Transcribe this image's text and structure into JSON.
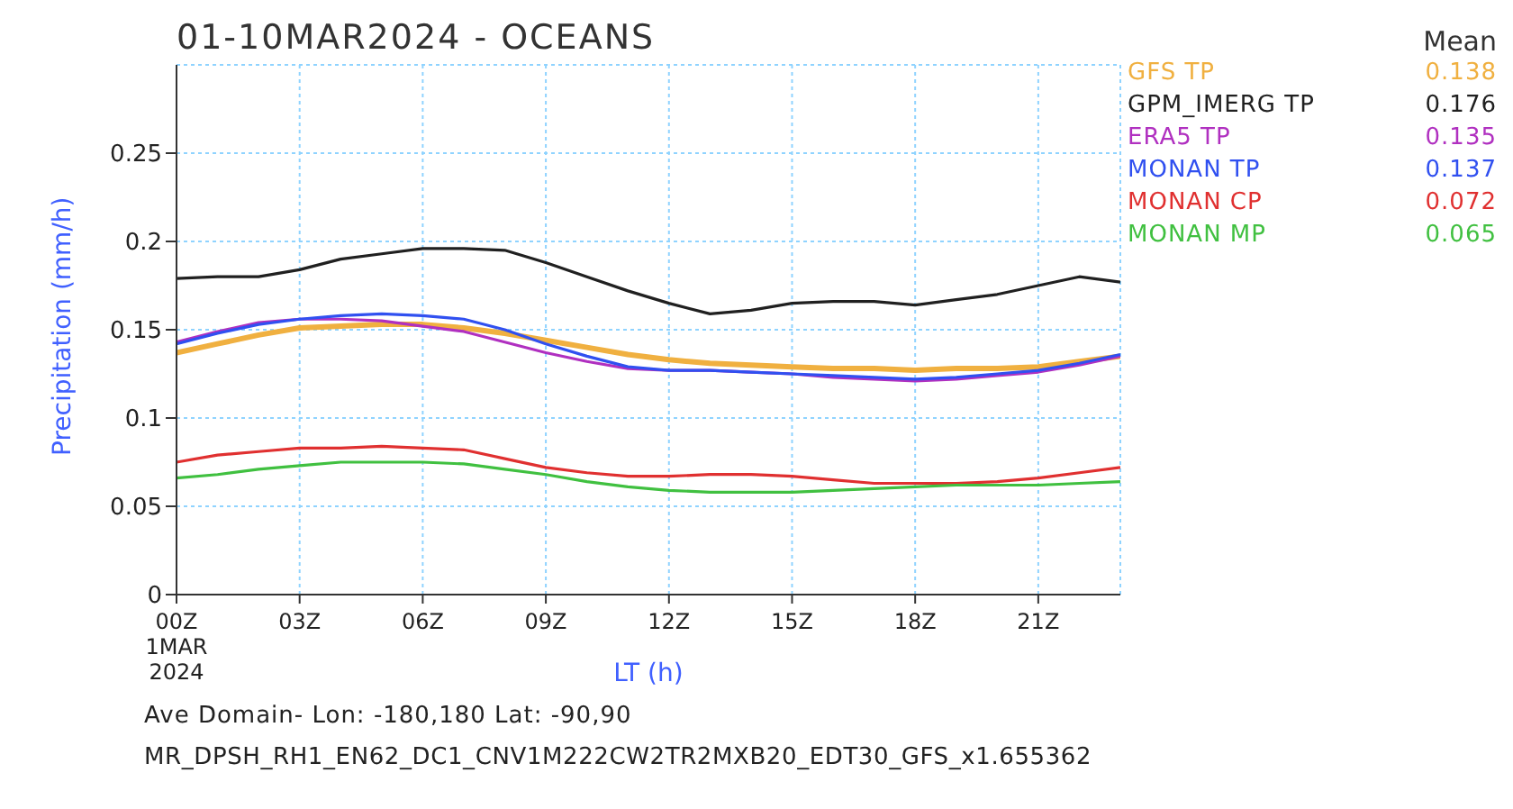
{
  "chart_data": {
    "type": "line",
    "title": "01-10MAR2024 - OCEANS",
    "xlabel": "LT (h)",
    "ylabel": "Precipitation (mm/h)",
    "legend_title": "Mean",
    "annotations": [
      "Ave Domain- Lon: -180,180 Lat: -90,90",
      "MR_DPSH_RH1_EN62_DC1_CNV1M222CW2TR2MXB20_EDT30_GFS_x1.655362",
      "0.138",
      "0.176",
      "0.135",
      "0.137",
      "0.072",
      "0.065"
    ],
    "x": [
      0,
      1,
      2,
      3,
      4,
      5,
      6,
      7,
      8,
      9,
      10,
      11,
      12,
      13,
      14,
      15,
      16,
      17,
      18,
      19,
      20,
      21,
      22,
      23
    ],
    "xlim": [
      0,
      23
    ],
    "xticks": [
      {
        "value": 0,
        "label": "00Z\n1MAR\n2024"
      },
      {
        "value": 3,
        "label": "03Z"
      },
      {
        "value": 6,
        "label": "06Z"
      },
      {
        "value": 9,
        "label": "09Z"
      },
      {
        "value": 12,
        "label": "12Z"
      },
      {
        "value": 15,
        "label": "15Z"
      },
      {
        "value": 18,
        "label": "18Z"
      },
      {
        "value": 21,
        "label": "21Z"
      }
    ],
    "ylim": [
      0,
      0.3
    ],
    "yticks": [
      0,
      0.05,
      0.1,
      0.15,
      0.2,
      0.25
    ],
    "grid": true,
    "legend": "top right",
    "marker": "none",
    "line_style": "solid",
    "series": [
      {
        "name": "GFS TP",
        "color": "#f0b040",
        "values": [
          0.137,
          0.142,
          0.147,
          0.151,
          0.152,
          0.153,
          0.153,
          0.151,
          0.148,
          0.144,
          0.14,
          0.136,
          0.133,
          0.131,
          0.13,
          0.129,
          0.128,
          0.128,
          0.127,
          0.128,
          0.128,
          0.129,
          0.132,
          0.135
        ]
      },
      {
        "name": "GPM_IMERG TP",
        "color": "#202020",
        "values": [
          0.179,
          0.18,
          0.18,
          0.184,
          0.19,
          0.193,
          0.196,
          0.196,
          0.195,
          0.188,
          0.18,
          0.172,
          0.165,
          0.159,
          0.161,
          0.165,
          0.166,
          0.166,
          0.164,
          0.167,
          0.17,
          0.175,
          0.18,
          0.177
        ]
      },
      {
        "name": "ERA5 TP",
        "color": "#b030c0",
        "values": [
          0.143,
          0.149,
          0.154,
          0.156,
          0.156,
          0.155,
          0.152,
          0.149,
          0.143,
          0.137,
          0.132,
          0.128,
          0.127,
          0.127,
          0.126,
          0.125,
          0.123,
          0.122,
          0.121,
          0.122,
          0.124,
          0.126,
          0.13,
          0.135
        ]
      },
      {
        "name": "MONAN TP",
        "color": "#3050f0",
        "values": [
          0.142,
          0.148,
          0.153,
          0.156,
          0.158,
          0.159,
          0.158,
          0.156,
          0.15,
          0.142,
          0.135,
          0.129,
          0.127,
          0.127,
          0.126,
          0.125,
          0.124,
          0.123,
          0.122,
          0.123,
          0.125,
          0.127,
          0.131,
          0.136
        ]
      },
      {
        "name": "MONAN CP",
        "color": "#e03030",
        "values": [
          0.075,
          0.079,
          0.081,
          0.083,
          0.083,
          0.084,
          0.083,
          0.082,
          0.077,
          0.072,
          0.069,
          0.067,
          0.067,
          0.068,
          0.068,
          0.067,
          0.065,
          0.063,
          0.063,
          0.063,
          0.064,
          0.066,
          0.069,
          0.072
        ]
      },
      {
        "name": "MONAN MP",
        "color": "#40c040",
        "values": [
          0.066,
          0.068,
          0.071,
          0.073,
          0.075,
          0.075,
          0.075,
          0.074,
          0.071,
          0.068,
          0.064,
          0.061,
          0.059,
          0.058,
          0.058,
          0.058,
          0.059,
          0.06,
          0.061,
          0.062,
          0.062,
          0.062,
          0.063,
          0.064
        ]
      }
    ]
  }
}
